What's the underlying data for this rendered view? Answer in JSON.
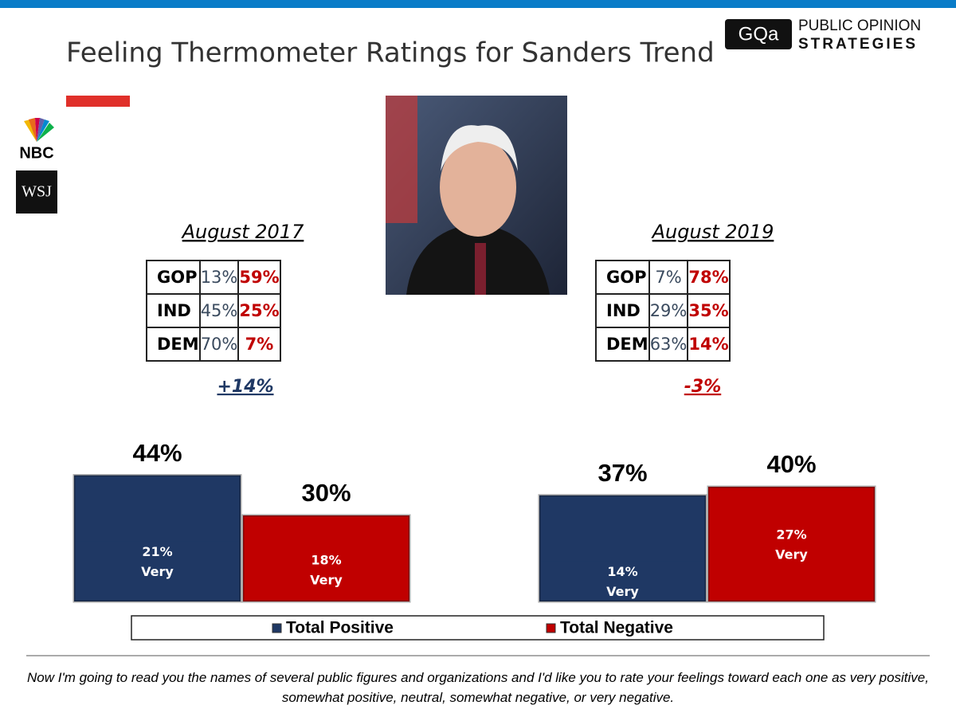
{
  "header": {
    "title": "Feeling Thermometer Ratings for Sanders Trend",
    "logo_mark": "GQa",
    "logo_line1": "PUBLIC OPINION",
    "logo_line2": "STRATEGIES",
    "nbc": "NBC",
    "wsj": "WSJ"
  },
  "tables": [
    {
      "title": "August 2017",
      "rows": [
        [
          "GOP",
          "13%",
          "59%"
        ],
        [
          "IND",
          "45%",
          "25%"
        ],
        [
          "DEM",
          "70%",
          "7%"
        ]
      ],
      "net": "+14%",
      "net_color": "#1f3864"
    },
    {
      "title": "August 2019",
      "rows": [
        [
          "GOP",
          "7%",
          "78%"
        ],
        [
          "IND",
          "29%",
          "35%"
        ],
        [
          "DEM",
          "63%",
          "14%"
        ]
      ],
      "net": "-3%",
      "net_color": "#c00000"
    }
  ],
  "chart_data": [
    {
      "type": "bar",
      "ylim": [
        0,
        50
      ],
      "segment_label": "Very",
      "series": [
        {
          "name": "Total Positive",
          "color": "#1f3864",
          "values": [
            44
          ],
          "value_labels": [
            "44%"
          ],
          "very_values": [
            21
          ],
          "very_value_labels": [
            "21%"
          ]
        },
        {
          "name": "Total Negative",
          "color": "#c00000",
          "values": [
            30
          ],
          "value_labels": [
            "30%"
          ],
          "very_values": [
            18
          ],
          "very_value_labels": [
            "18%"
          ]
        }
      ]
    },
    {
      "type": "bar",
      "ylim": [
        0,
        50
      ],
      "segment_label": "Very",
      "series": [
        {
          "name": "Total Positive",
          "color": "#1f3864",
          "values": [
            37
          ],
          "value_labels": [
            "37%"
          ],
          "very_values": [
            14
          ],
          "very_value_labels": [
            "14%"
          ]
        },
        {
          "name": "Total Negative",
          "color": "#c00000",
          "values": [
            40
          ],
          "value_labels": [
            "40%"
          ],
          "very_values": [
            27
          ],
          "very_value_labels": [
            "27%"
          ]
        }
      ]
    }
  ],
  "footnote": "Now I'm going to read you the names of several public figures and organizations and I'd like you to rate your feelings toward each one as very positive, somewhat positive, neutral, somewhat negative, or very negative."
}
